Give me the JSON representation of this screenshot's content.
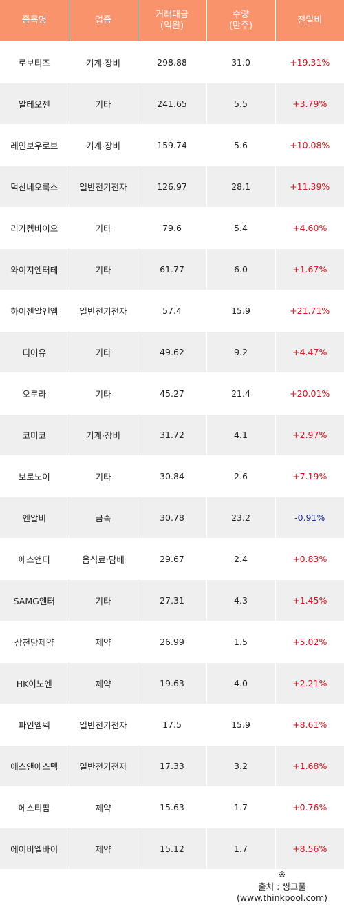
{
  "header": {
    "name": "종목명",
    "sector": "업종",
    "amount_line1": "거래대금",
    "amount_line2": "(억원)",
    "volume_line1": "수량",
    "volume_line2": "(만주)",
    "change": "전일비"
  },
  "rows": [
    {
      "name": "로보티즈",
      "sector": "기계·장비",
      "amount": "298.88",
      "volume": "31.0",
      "change": "+19.31%",
      "direction": "up"
    },
    {
      "name": "알테오젠",
      "sector": "기타",
      "amount": "241.65",
      "volume": "5.5",
      "change": "+3.79%",
      "direction": "up"
    },
    {
      "name": "레인보우로보",
      "sector": "기계·장비",
      "amount": "159.74",
      "volume": "5.6",
      "change": "+10.08%",
      "direction": "up"
    },
    {
      "name": "덕산네오룩스",
      "sector": "일반전기전자",
      "amount": "126.97",
      "volume": "28.1",
      "change": "+11.39%",
      "direction": "up"
    },
    {
      "name": "리가켐바이오",
      "sector": "기타",
      "amount": "79.6",
      "volume": "5.4",
      "change": "+4.60%",
      "direction": "up"
    },
    {
      "name": "와이지엔터테",
      "sector": "기타",
      "amount": "61.77",
      "volume": "6.0",
      "change": "+1.67%",
      "direction": "up"
    },
    {
      "name": "하이젠알앤엠",
      "sector": "일반전기전자",
      "amount": "57.4",
      "volume": "15.9",
      "change": "+21.71%",
      "direction": "up"
    },
    {
      "name": "디어유",
      "sector": "기타",
      "amount": "49.62",
      "volume": "9.2",
      "change": "+4.47%",
      "direction": "up"
    },
    {
      "name": "오로라",
      "sector": "기타",
      "amount": "45.27",
      "volume": "21.4",
      "change": "+20.01%",
      "direction": "up"
    },
    {
      "name": "코미코",
      "sector": "기계·장비",
      "amount": "31.72",
      "volume": "4.1",
      "change": "+2.97%",
      "direction": "up"
    },
    {
      "name": "보로노이",
      "sector": "기타",
      "amount": "30.84",
      "volume": "2.6",
      "change": "+7.19%",
      "direction": "up"
    },
    {
      "name": "엔알비",
      "sector": "금속",
      "amount": "30.78",
      "volume": "23.2",
      "change": "-0.91%",
      "direction": "down"
    },
    {
      "name": "에스앤디",
      "sector": "음식료·담배",
      "amount": "29.67",
      "volume": "2.4",
      "change": "+0.83%",
      "direction": "up"
    },
    {
      "name": "SAMG엔터",
      "sector": "기타",
      "amount": "27.31",
      "volume": "4.3",
      "change": "+1.45%",
      "direction": "up"
    },
    {
      "name": "삼천당제약",
      "sector": "제약",
      "amount": "26.99",
      "volume": "1.5",
      "change": "+5.02%",
      "direction": "up"
    },
    {
      "name": "HK이노엔",
      "sector": "제약",
      "amount": "19.63",
      "volume": "4.0",
      "change": "+2.21%",
      "direction": "up"
    },
    {
      "name": "파인엠텍",
      "sector": "일반전기전자",
      "amount": "17.5",
      "volume": "15.9",
      "change": "+8.61%",
      "direction": "up"
    },
    {
      "name": "에스앤에스텍",
      "sector": "일반전기전자",
      "amount": "17.33",
      "volume": "3.2",
      "change": "+1.68%",
      "direction": "up"
    },
    {
      "name": "에스티팜",
      "sector": "제약",
      "amount": "15.63",
      "volume": "1.7",
      "change": "+0.76%",
      "direction": "up"
    },
    {
      "name": "에이비엘바이",
      "sector": "제약",
      "amount": "15.12",
      "volume": "1.7",
      "change": "+8.56%",
      "direction": "up"
    }
  ],
  "source": {
    "mark": "※",
    "text": "출처 : 씽크풀 (www.thinkpool.com)"
  },
  "colors": {
    "header_bg": "#f9936c",
    "header_text": "#ffffff",
    "row_alt_bg": "#efefef",
    "up": "#e0121b",
    "down": "#1b2ea8"
  }
}
